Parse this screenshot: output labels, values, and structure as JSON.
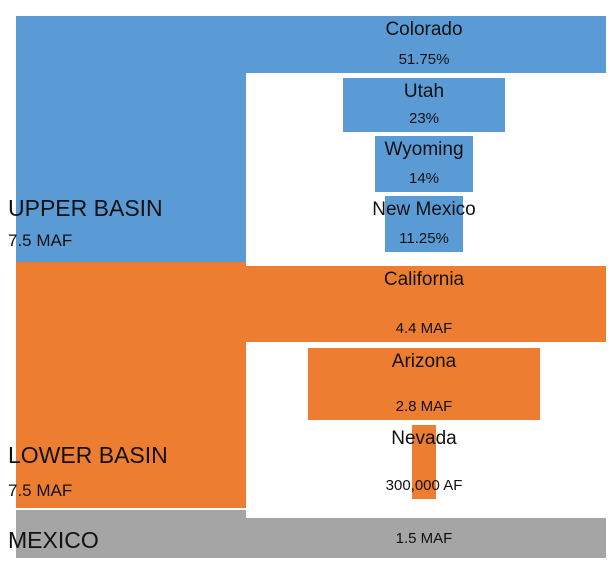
{
  "chart_data": {
    "type": "bar",
    "orientation": "horizontal-centered",
    "regions": [
      {
        "name": "UPPER BASIN",
        "value": "7.5 MAF",
        "amount_maf": 7.5,
        "color": "#5b9bd5"
      },
      {
        "name": "LOWER BASIN",
        "value": "7.5 MAF",
        "amount_maf": 7.5,
        "color": "#ed7d31"
      },
      {
        "name": "MEXICO",
        "value": "",
        "amount_maf": 1.5,
        "color": "#a5a5a5"
      }
    ],
    "bars": [
      {
        "label": "Colorado",
        "value_label": "51.75%",
        "percent": 51.75,
        "amount_maf": 3.88,
        "region": "UPPER BASIN",
        "color": "#5b9bd5"
      },
      {
        "label": "Utah",
        "value_label": "23%",
        "percent": 23,
        "amount_maf": 1.725,
        "region": "UPPER BASIN",
        "color": "#5b9bd5"
      },
      {
        "label": "Wyoming",
        "value_label": "14%",
        "percent": 14,
        "amount_maf": 1.05,
        "region": "UPPER BASIN",
        "color": "#5b9bd5"
      },
      {
        "label": "New Mexico",
        "value_label": "11.25%",
        "percent": 11.25,
        "amount_maf": 0.84,
        "region": "UPPER BASIN",
        "color": "#5b9bd5"
      },
      {
        "label": "California",
        "value_label": "4.4 MAF",
        "amount_maf": 4.4,
        "region": "LOWER BASIN",
        "color": "#ed7d31"
      },
      {
        "label": "Arizona",
        "value_label": "2.8 MAF",
        "amount_maf": 2.8,
        "region": "LOWER BASIN",
        "color": "#ed7d31"
      },
      {
        "label": "Nevada",
        "value_label": "300,000 AF",
        "amount_maf": 0.3,
        "region": "LOWER BASIN",
        "color": "#ed7d31"
      },
      {
        "label": "",
        "value_label": "1.5 MAF",
        "amount_maf": 1.5,
        "region": "MEXICO",
        "color": "#a5a5a5"
      }
    ]
  }
}
